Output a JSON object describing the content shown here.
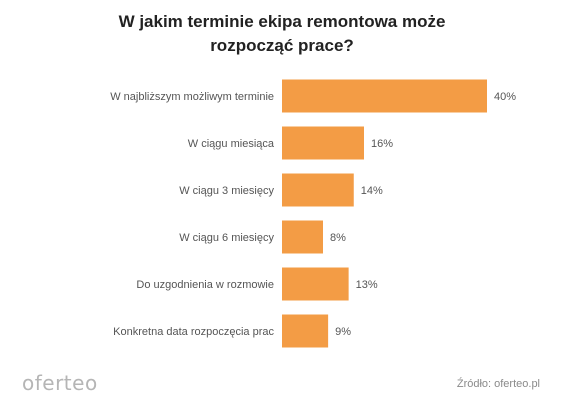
{
  "title_line1": "W jakim terminie ekipa remontowa może",
  "title_line2": "rozpocząć prace?",
  "logo_text": "oferteo",
  "source_text": "Źródło: oferteo.pl",
  "colors": {
    "bar": "#F39C45"
  },
  "chart_data": {
    "type": "bar",
    "orientation": "horizontal",
    "title": "W jakim terminie ekipa remontowa może rozpocząć prace?",
    "categories": [
      "W najbliższym możliwym terminie",
      "W ciągu miesiąca",
      "W ciągu 3 miesięcy",
      "W ciągu 6 miesięcy",
      "Do uzgodnienia w rozmowie",
      "Konkretna data rozpoczęcia prac"
    ],
    "values": [
      40,
      16,
      14,
      8,
      13,
      9
    ],
    "value_labels": [
      "40%",
      "16%",
      "14%",
      "8%",
      "13%",
      "9%"
    ],
    "unit": "%",
    "xlim": [
      0,
      40
    ],
    "grid": false,
    "legend": "none"
  }
}
